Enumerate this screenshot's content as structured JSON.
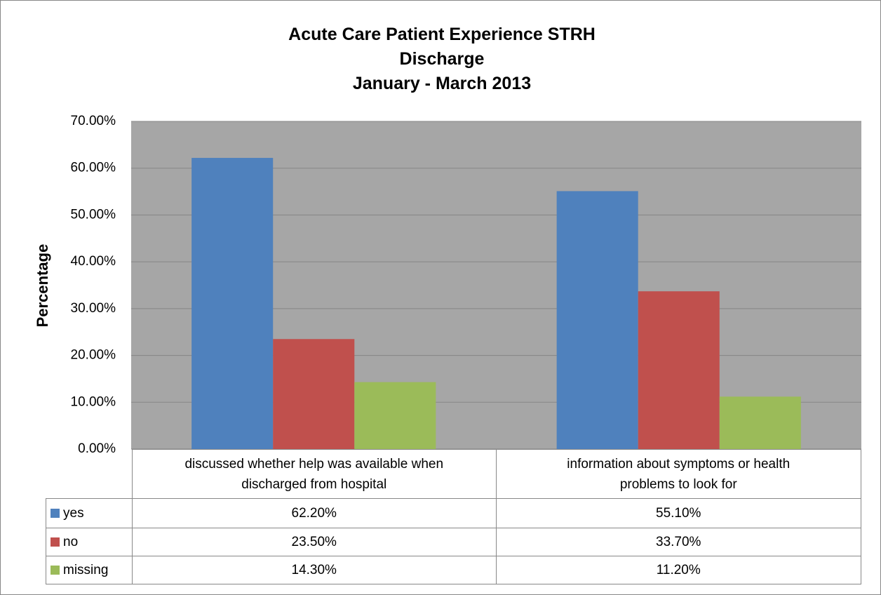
{
  "chart_data": {
    "type": "bar",
    "title": [
      "Acute Care Patient Experience STRH",
      "Discharge",
      "January - March 2013"
    ],
    "y_label": "Percentage",
    "categories": [
      "discussed whether help was available when discharged from hospital",
      "information about symptoms or health problems to look for"
    ],
    "series": [
      {
        "name": "yes",
        "color": "#4f81bd",
        "values": [
          62.2,
          55.1
        ],
        "value_labels": [
          "62.20%",
          "55.10%"
        ]
      },
      {
        "name": "no",
        "color": "#c0504d",
        "values": [
          23.5,
          33.7
        ],
        "value_labels": [
          "23.50%",
          "33.70%"
        ]
      },
      {
        "name": "missing",
        "color": "#9bbb59",
        "values": [
          14.3,
          11.2
        ],
        "value_labels": [
          "14.30%",
          "11.20%"
        ]
      }
    ],
    "ylim": [
      0,
      70
    ],
    "yticks": [
      {
        "value": 0,
        "label": "0.00%"
      },
      {
        "value": 10,
        "label": "10.00%"
      },
      {
        "value": 20,
        "label": "20.00%"
      },
      {
        "value": 30,
        "label": "30.00%"
      },
      {
        "value": 40,
        "label": "40.00%"
      },
      {
        "value": 50,
        "label": "50.00%"
      },
      {
        "value": 60,
        "label": "60.00%"
      },
      {
        "value": 70,
        "label": "70.00%"
      }
    ],
    "grid": true,
    "legend": "data-table"
  }
}
